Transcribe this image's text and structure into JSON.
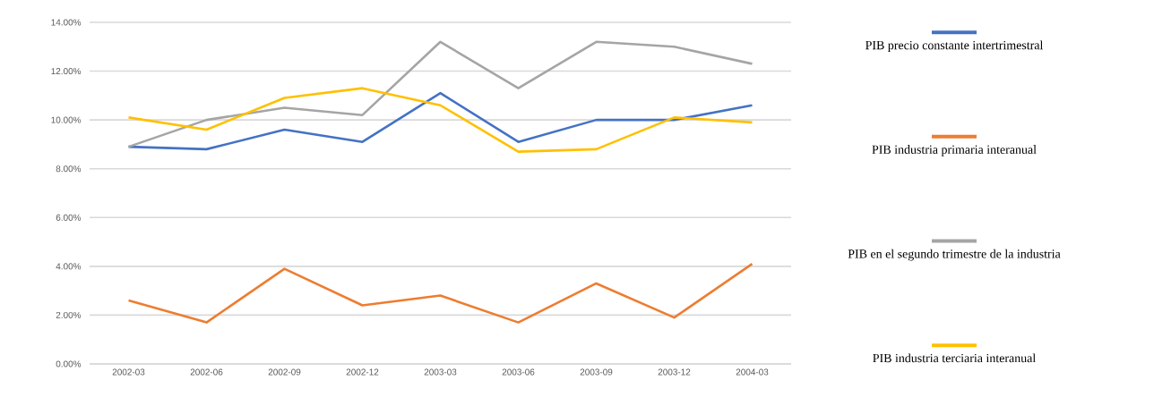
{
  "chart_data": {
    "type": "line",
    "categories": [
      "2002-03",
      "2002-06",
      "2002-09",
      "2002-12",
      "2003-03",
      "2003-06",
      "2003-09",
      "2003-12",
      "2004-03"
    ],
    "series": [
      {
        "name": "PIB precio constante intertrimestral",
        "color": "#4472c4",
        "values": [
          8.9,
          8.8,
          9.6,
          9.1,
          11.1,
          9.1,
          10.0,
          10.0,
          10.6
        ]
      },
      {
        "name": "PIB industria primaria interanual",
        "color": "#ed7d31",
        "values": [
          2.6,
          1.7,
          3.9,
          2.4,
          2.8,
          1.7,
          3.3,
          1.9,
          4.1
        ]
      },
      {
        "name": "PIB en el segundo trimestre de la industria",
        "color": "#a5a5a5",
        "values": [
          8.9,
          10.0,
          10.5,
          10.2,
          13.2,
          11.3,
          13.2,
          13.0,
          12.3
        ]
      },
      {
        "name": "PIB industria terciaria interanual",
        "color": "#ffc000",
        "values": [
          10.1,
          9.6,
          10.9,
          11.3,
          10.6,
          8.7,
          8.8,
          10.1,
          9.9
        ]
      }
    ],
    "ylim": [
      0,
      14
    ],
    "yticks": [
      {
        "value": 0,
        "label": "0.00%"
      },
      {
        "value": 2,
        "label": "2.00%"
      },
      {
        "value": 4,
        "label": "4.00%"
      },
      {
        "value": 6,
        "label": "6.00%"
      },
      {
        "value": 8,
        "label": "8.00%"
      },
      {
        "value": 10,
        "label": "10.00%"
      },
      {
        "value": 12,
        "label": "12.00%"
      },
      {
        "value": 14,
        "label": "14.00%"
      }
    ],
    "grid": "y",
    "legend": "right",
    "line_style": "solid"
  }
}
